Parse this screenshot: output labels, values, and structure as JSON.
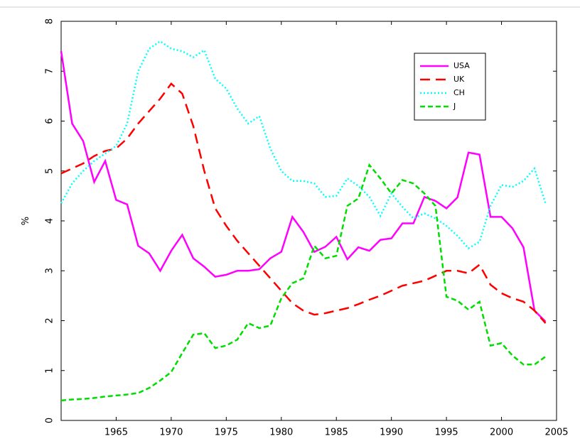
{
  "chart_data": {
    "type": "line",
    "y_label": "%",
    "x": [
      1960,
      1961,
      1962,
      1963,
      1964,
      1965,
      1966,
      1967,
      1968,
      1969,
      1970,
      1971,
      1972,
      1973,
      1974,
      1975,
      1976,
      1977,
      1978,
      1979,
      1980,
      1981,
      1982,
      1983,
      1984,
      1985,
      1986,
      1987,
      1988,
      1989,
      1990,
      1991,
      1992,
      1993,
      1994,
      1995,
      1996,
      1997,
      1998,
      1999,
      2000,
      2001,
      2002,
      2003,
      2004
    ],
    "series": [
      {
        "name": "USA",
        "color": "#ff00ff",
        "linestyle": "solid",
        "values": [
          7.4,
          5.95,
          5.6,
          4.78,
          5.2,
          4.42,
          4.33,
          3.5,
          3.35,
          3.0,
          3.4,
          3.72,
          3.25,
          3.08,
          2.88,
          2.92,
          3.0,
          3.0,
          3.03,
          3.25,
          3.38,
          4.08,
          3.78,
          3.38,
          3.48,
          3.68,
          3.23,
          3.47,
          3.4,
          3.62,
          3.65,
          3.95,
          3.95,
          4.48,
          4.4,
          4.25,
          4.47,
          5.37,
          5.33,
          4.08,
          4.08,
          3.85,
          3.47,
          2.2,
          1.98
        ]
      },
      {
        "name": "UK",
        "color": "#ff0000",
        "linestyle": "dashed",
        "values": [
          4.95,
          5.05,
          5.15,
          5.3,
          5.4,
          5.45,
          5.65,
          5.95,
          6.2,
          6.45,
          6.75,
          6.55,
          5.9,
          5.0,
          4.25,
          3.9,
          3.6,
          3.35,
          3.1,
          2.85,
          2.6,
          2.35,
          2.2,
          2.12,
          2.15,
          2.2,
          2.25,
          2.33,
          2.42,
          2.5,
          2.6,
          2.7,
          2.75,
          2.8,
          2.9,
          3.0,
          3.0,
          2.95,
          3.12,
          2.72,
          2.55,
          2.45,
          2.38,
          2.2,
          1.95
        ]
      },
      {
        "name": "CH",
        "color": "#00ffff",
        "linestyle": "dotted",
        "values": [
          4.35,
          4.75,
          5.0,
          5.2,
          5.35,
          5.5,
          5.95,
          7.0,
          7.45,
          7.6,
          7.45,
          7.4,
          7.28,
          7.42,
          6.85,
          6.65,
          6.25,
          5.95,
          6.1,
          5.45,
          5.0,
          4.8,
          4.8,
          4.75,
          4.48,
          4.5,
          4.85,
          4.7,
          4.48,
          4.1,
          4.55,
          4.28,
          4.05,
          4.15,
          4.05,
          3.9,
          3.7,
          3.45,
          3.58,
          4.3,
          4.72,
          4.68,
          4.8,
          5.05,
          4.35
        ]
      },
      {
        "name": "J",
        "color": "#00dd00",
        "linestyle": "dashed-short",
        "values": [
          0.4,
          0.42,
          0.43,
          0.45,
          0.48,
          0.5,
          0.52,
          0.55,
          0.65,
          0.8,
          0.97,
          1.35,
          1.72,
          1.75,
          1.45,
          1.5,
          1.62,
          1.95,
          1.85,
          1.9,
          2.45,
          2.75,
          2.85,
          3.5,
          3.25,
          3.3,
          4.3,
          4.45,
          5.12,
          4.85,
          4.55,
          4.82,
          4.75,
          4.55,
          4.3,
          2.48,
          2.4,
          2.22,
          2.38,
          1.5,
          1.55,
          1.3,
          1.12,
          1.12,
          1.28
        ]
      }
    ],
    "xlim": [
      1960,
      2005
    ],
    "xticks": [
      1965,
      1970,
      1975,
      1980,
      1985,
      1990,
      1995,
      2000,
      2005
    ],
    "ylim": [
      0,
      8
    ],
    "yticks": [
      0,
      1,
      2,
      3,
      4,
      5,
      6,
      7,
      8
    ],
    "grid": false,
    "legend": "upper right"
  }
}
